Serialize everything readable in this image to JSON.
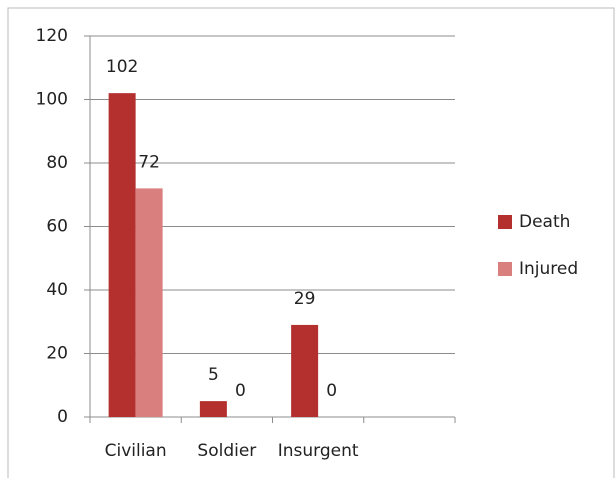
{
  "chart_data": {
    "type": "bar",
    "categories": [
      "Civilian",
      "Soldier",
      "Insurgent",
      null
    ],
    "series": [
      {
        "name": "Death",
        "color": "#b3302f",
        "values": [
          102,
          5,
          29,
          null
        ]
      },
      {
        "name": "Injured",
        "color": "#d9807f",
        "values": [
          72,
          0,
          0,
          null
        ]
      }
    ],
    "ylim": [
      0,
      120
    ],
    "yticks": [
      0,
      20,
      40,
      60,
      80,
      100,
      120
    ],
    "grid": true,
    "legend": "right"
  }
}
